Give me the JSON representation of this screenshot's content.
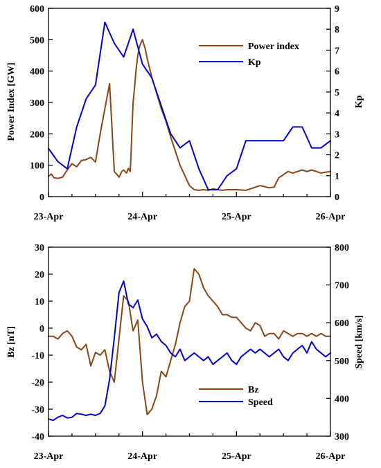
{
  "chart_data": [
    {
      "type": "line",
      "x_ticks": [
        "23-Apr",
        "24-Apr",
        "25-Apr",
        "26-Apr"
      ],
      "xlim": [
        0,
        3
      ],
      "ylabel_left": "Power Index [GW]",
      "ylim_left": [
        0,
        600
      ],
      "yticks_left": [
        0,
        100,
        200,
        300,
        400,
        500,
        600
      ],
      "ylabel_right": "Kp",
      "ylim_right": [
        0,
        9
      ],
      "yticks_right": [
        0,
        1,
        2,
        3,
        4,
        5,
        6,
        7,
        8,
        9
      ],
      "legend_position": "top-right",
      "grid": false,
      "series": [
        {
          "name": "Power index",
          "axis": "left",
          "color": "#8B4513",
          "x": [
            0,
            0.03,
            0.06,
            0.1,
            0.15,
            0.2,
            0.25,
            0.3,
            0.35,
            0.4,
            0.45,
            0.5,
            0.55,
            0.6,
            0.65,
            0.7,
            0.75,
            0.78,
            0.8,
            0.83,
            0.85,
            0.87,
            0.88,
            0.9,
            0.92,
            0.93,
            0.95,
            0.97,
            1.0,
            1.03,
            1.05,
            1.1,
            1.15,
            1.2,
            1.25,
            1.3,
            1.4,
            1.5,
            1.55,
            1.6,
            1.65,
            1.7,
            1.75,
            1.8,
            1.85,
            1.9,
            2.0,
            2.1,
            2.2,
            2.25,
            2.3,
            2.35,
            2.4,
            2.45,
            2.5,
            2.55,
            2.6,
            2.65,
            2.7,
            2.75,
            2.8,
            2.85,
            2.9,
            2.95,
            3.0
          ],
          "values": [
            65,
            72,
            60,
            58,
            62,
            85,
            105,
            95,
            115,
            118,
            125,
            110,
            200,
            280,
            360,
            80,
            62,
            80,
            85,
            75,
            90,
            80,
            150,
            300,
            360,
            400,
            450,
            480,
            500,
            470,
            440,
            380,
            330,
            280,
            240,
            190,
            100,
            35,
            22,
            20,
            22,
            20,
            25,
            22,
            20,
            22,
            22,
            20,
            30,
            35,
            32,
            28,
            30,
            60,
            70,
            80,
            75,
            80,
            85,
            80,
            85,
            80,
            75,
            78,
            80
          ]
        },
        {
          "name": "Kp",
          "axis": "right",
          "color": "#0000CC",
          "x": [
            0,
            0.1,
            0.2,
            0.3,
            0.4,
            0.5,
            0.6,
            0.7,
            0.8,
            0.9,
            1.0,
            1.1,
            1.2,
            1.3,
            1.4,
            1.5,
            1.6,
            1.7,
            1.8,
            1.9,
            2.0,
            2.1,
            2.2,
            2.3,
            2.4,
            2.5,
            2.6,
            2.7,
            2.8,
            2.9,
            3.0
          ],
          "values": [
            2.3,
            1.67,
            1.33,
            3.33,
            4.67,
            5.33,
            8.33,
            7.33,
            6.67,
            8.0,
            6.33,
            5.67,
            4.33,
            3.0,
            2.33,
            2.67,
            1.33,
            0.33,
            0.33,
            1.0,
            1.33,
            2.67,
            2.67,
            2.67,
            2.67,
            2.67,
            3.33,
            3.33,
            2.33,
            2.33,
            2.67
          ]
        }
      ]
    },
    {
      "type": "line",
      "x_ticks": [
        "23-Apr",
        "24-Apr",
        "25-Apr",
        "26-Apr"
      ],
      "xlim": [
        0,
        3
      ],
      "ylabel_left": "Bz [nT]",
      "ylim_left": [
        -40,
        30
      ],
      "yticks_left": [
        -40,
        -30,
        -20,
        -10,
        0,
        10,
        20,
        30
      ],
      "ylabel_right": "Speed [km/s]",
      "ylim_right": [
        300,
        800
      ],
      "yticks_right": [
        300,
        400,
        500,
        600,
        700,
        800
      ],
      "legend_position": "bottom-center",
      "grid": false,
      "series": [
        {
          "name": "Bz",
          "axis": "left",
          "color": "#8B4513",
          "x": [
            0,
            0.05,
            0.1,
            0.15,
            0.2,
            0.25,
            0.3,
            0.35,
            0.4,
            0.45,
            0.5,
            0.55,
            0.6,
            0.65,
            0.7,
            0.75,
            0.8,
            0.85,
            0.9,
            0.95,
            1.0,
            1.05,
            1.1,
            1.15,
            1.2,
            1.25,
            1.3,
            1.35,
            1.4,
            1.45,
            1.5,
            1.55,
            1.6,
            1.65,
            1.7,
            1.75,
            1.8,
            1.85,
            1.9,
            1.95,
            2.0,
            2.05,
            2.1,
            2.15,
            2.2,
            2.25,
            2.3,
            2.35,
            2.4,
            2.45,
            2.5,
            2.55,
            2.6,
            2.65,
            2.7,
            2.75,
            2.8,
            2.85,
            2.9,
            2.95,
            3.0
          ],
          "values": [
            -3,
            -3,
            -4,
            -2,
            -1,
            -3,
            -7,
            -8,
            -6,
            -14,
            -9,
            -10,
            -8,
            -16,
            -20,
            -4,
            12,
            10,
            -1,
            3,
            -20,
            -32,
            -30,
            -25,
            -16,
            -18,
            -12,
            -6,
            2,
            8,
            10,
            22,
            20,
            15,
            12,
            10,
            8,
            5,
            5,
            4,
            4,
            2,
            0,
            -1,
            2,
            1,
            -3,
            -2,
            -2,
            -4,
            -1,
            -2,
            -3,
            -2,
            -2,
            -3,
            -2,
            -3,
            -2,
            -3,
            -3
          ]
        },
        {
          "name": "Speed",
          "axis": "right",
          "color": "#0000CC",
          "x": [
            0,
            0.05,
            0.1,
            0.15,
            0.2,
            0.25,
            0.3,
            0.35,
            0.4,
            0.45,
            0.5,
            0.55,
            0.6,
            0.65,
            0.7,
            0.75,
            0.8,
            0.85,
            0.9,
            0.95,
            1.0,
            1.05,
            1.1,
            1.15,
            1.2,
            1.25,
            1.3,
            1.35,
            1.4,
            1.45,
            1.5,
            1.55,
            1.6,
            1.65,
            1.7,
            1.75,
            1.8,
            1.85,
            1.9,
            1.95,
            2.0,
            2.05,
            2.1,
            2.15,
            2.2,
            2.25,
            2.3,
            2.35,
            2.4,
            2.45,
            2.5,
            2.55,
            2.6,
            2.65,
            2.7,
            2.75,
            2.8,
            2.85,
            2.9,
            2.95,
            3.0
          ],
          "values": [
            345,
            342,
            350,
            355,
            348,
            350,
            360,
            358,
            355,
            358,
            355,
            360,
            380,
            450,
            560,
            680,
            710,
            650,
            640,
            660,
            610,
            590,
            560,
            570,
            550,
            540,
            520,
            510,
            530,
            500,
            510,
            520,
            510,
            500,
            510,
            490,
            500,
            510,
            520,
            500,
            490,
            510,
            520,
            530,
            520,
            530,
            520,
            510,
            520,
            530,
            510,
            500,
            520,
            530,
            540,
            520,
            550,
            530,
            520,
            510,
            520
          ]
        }
      ]
    }
  ]
}
